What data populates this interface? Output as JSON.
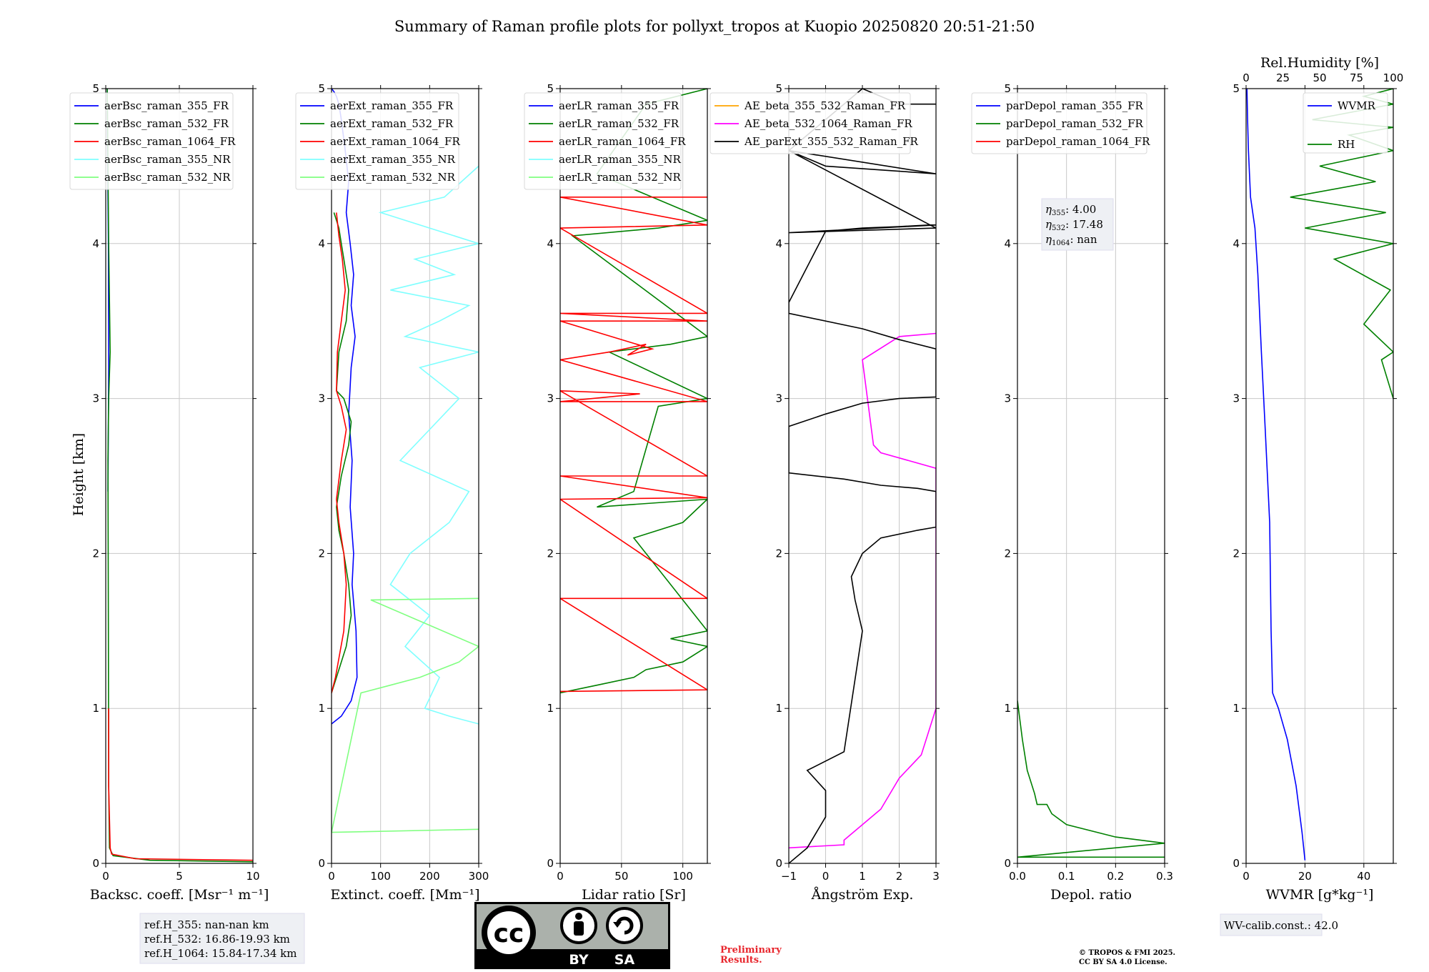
{
  "title": "Summary of Raman profile plots for pollyxt_tropos at Kuopio 20250820 20:51-21:50",
  "ylabel": "Height [km]",
  "ref_heights": [
    "ref.H_355: nan-nan km",
    "ref.H_532: 16.86-19.93 km",
    "ref.H_1064: 15.84-17.34 km"
  ],
  "eta_box": [
    {
      "sym": "η",
      "sub": "355",
      "val": ": 4.00"
    },
    {
      "sym": "η",
      "sub": "532",
      "val": ": 17.48"
    },
    {
      "sym": "η",
      "sub": "1064",
      "val": ": nan"
    }
  ],
  "wv_calib": "WV-calib.const.: 42.0",
  "license_badge": {
    "cc": "cc",
    "by": "BY",
    "sa": "SA"
  },
  "preliminary": [
    "Preliminary",
    "Results."
  ],
  "copyright": [
    "© TROPOS & FMI 2025.",
    "CC BY SA 4.0 License."
  ],
  "colors": {
    "blue": "#0000ff",
    "green": "#008000",
    "red": "#ff0000",
    "cyan": "#7fffff",
    "lightgreen": "#80ff80",
    "orange": "#ffa500",
    "magenta": "#ff00ff",
    "black": "#000000"
  },
  "chart_data": [
    {
      "type": "line",
      "xlabel": "Backsc. coeff. [Msr⁻¹ m⁻¹]",
      "xlim": [
        0,
        10
      ],
      "ylim": [
        0,
        5
      ],
      "xticks": [
        0,
        5,
        10
      ],
      "yticks": [
        0,
        1,
        2,
        3,
        4,
        5
      ],
      "grid": true,
      "legend": "top-right",
      "series": [
        {
          "name": "aerBsc_raman_355_FR",
          "color": "#0000ff",
          "x": [
            0.15,
            0.2,
            0.18,
            0.12,
            0.1
          ],
          "y": [
            2.4,
            3.2,
            4.0,
            4.6,
            5.0
          ]
        },
        {
          "name": "aerBsc_raman_532_FR",
          "color": "#008000",
          "x": [
            10,
            3.0,
            0.5,
            0.25,
            0.2,
            0.18,
            0.15,
            0.2,
            0.3,
            0.2,
            0.1
          ],
          "y": [
            0.01,
            0.02,
            0.05,
            0.1,
            0.5,
            1.5,
            2.6,
            3.0,
            3.3,
            4.0,
            5.0
          ]
        },
        {
          "name": "aerBsc_raman_1064_FR",
          "color": "#ff0000",
          "x": [
            10,
            2.0,
            0.4,
            0.3,
            0.2,
            0.2
          ],
          "y": [
            0.02,
            0.03,
            0.06,
            0.1,
            0.5,
            1.0
          ]
        },
        {
          "name": "aerBsc_raman_355_NR",
          "color": "#7fffff",
          "x": [],
          "y": []
        },
        {
          "name": "aerBsc_raman_532_NR",
          "color": "#80ff80",
          "x": [],
          "y": []
        }
      ]
    },
    {
      "type": "line",
      "xlabel": "Extinct. coeff. [Mm⁻¹]",
      "xlim": [
        0,
        300
      ],
      "ylim": [
        0,
        5
      ],
      "xticks": [
        0,
        100,
        200,
        300
      ],
      "yticks": [
        0,
        1,
        2,
        3,
        4,
        5
      ],
      "grid": true,
      "legend": "top-right",
      "series": [
        {
          "name": "aerExt_raman_355_FR",
          "color": "#0000ff",
          "x": [
            0,
            20,
            40,
            52,
            50,
            42,
            45,
            38,
            42,
            35,
            40,
            48,
            40,
            45,
            38,
            30,
            35,
            28,
            20,
            15,
            10,
            5,
            0
          ],
          "y": [
            0.9,
            0.95,
            1.05,
            1.2,
            1.5,
            1.8,
            2.0,
            2.3,
            2.6,
            2.9,
            3.2,
            3.4,
            3.6,
            3.8,
            4.0,
            4.2,
            4.4,
            4.6,
            4.8,
            4.9,
            4.95,
            4.98,
            5.0
          ]
        },
        {
          "name": "aerExt_raman_532_FR",
          "color": "#008000",
          "x": [
            0,
            10,
            30,
            40,
            35,
            25,
            15,
            10,
            20,
            35,
            40,
            25,
            10,
            15,
            30,
            35,
            25,
            20,
            15,
            10,
            5
          ],
          "y": [
            1.1,
            1.2,
            1.4,
            1.6,
            1.8,
            2.0,
            2.15,
            2.3,
            2.5,
            2.7,
            2.85,
            3.0,
            3.05,
            3.3,
            3.5,
            3.7,
            3.9,
            4.0,
            4.1,
            4.15,
            4.2
          ]
        },
        {
          "name": "aerExt_raman_1064_FR",
          "color": "#ff0000",
          "x": [
            0,
            8,
            25,
            30,
            25,
            15,
            10,
            20,
            30,
            20,
            10,
            12,
            20,
            28,
            22,
            15,
            10
          ],
          "y": [
            1.1,
            1.2,
            1.5,
            1.8,
            2.0,
            2.2,
            2.35,
            2.6,
            2.8,
            2.95,
            3.05,
            3.3,
            3.5,
            3.7,
            3.9,
            4.05,
            4.2
          ]
        },
        {
          "name": "aerExt_raman_355_NR",
          "color": "#7fffff",
          "x": [
            300,
            240,
            190,
            220,
            150,
            200,
            120,
            160,
            240,
            280,
            140,
            200,
            260,
            180,
            300,
            150,
            220,
            280,
            120,
            250,
            170,
            300,
            200,
            100,
            230,
            300
          ],
          "y": [
            0.9,
            0.95,
            1.0,
            1.2,
            1.4,
            1.6,
            1.8,
            2.0,
            2.2,
            2.4,
            2.6,
            2.8,
            3.0,
            3.2,
            3.3,
            3.4,
            3.5,
            3.6,
            3.7,
            3.8,
            3.9,
            4.0,
            4.1,
            4.2,
            4.3,
            4.5
          ]
        },
        {
          "name": "aerExt_raman_532_NR",
          "color": "#80ff80",
          "x": [
            300,
            0,
            60,
            120,
            180,
            260,
            300,
            80,
            300
          ],
          "y": [
            0.22,
            0.2,
            1.1,
            1.15,
            1.2,
            1.3,
            1.4,
            1.7,
            1.71
          ]
        }
      ]
    },
    {
      "type": "line",
      "xlabel": "Lidar ratio [Sr]",
      "xlim": [
        0,
        120
      ],
      "ylim": [
        0,
        5
      ],
      "xticks": [
        0,
        50,
        100
      ],
      "yticks": [
        0,
        1,
        2,
        3,
        4,
        5
      ],
      "grid": true,
      "legend": "top-right",
      "series": [
        {
          "name": "aerLR_raman_355_FR",
          "color": "#0000ff",
          "x": [],
          "y": []
        },
        {
          "name": "aerLR_raman_532_FR",
          "color": "#008000",
          "x": [
            0,
            30,
            60,
            70,
            100,
            120,
            90,
            120,
            60,
            100,
            120,
            30,
            60,
            80,
            120,
            40,
            90,
            120,
            10,
            80,
            120,
            30,
            70,
            120
          ],
          "y": [
            1.1,
            1.15,
            1.2,
            1.25,
            1.3,
            1.4,
            1.45,
            1.5,
            2.1,
            2.2,
            2.35,
            2.3,
            2.4,
            2.95,
            3.0,
            3.3,
            3.35,
            3.4,
            4.05,
            4.1,
            4.15,
            4.45,
            4.9,
            5.0
          ]
        },
        {
          "name": "aerLR_raman_1064_FR",
          "color": "#ff0000",
          "x": [
            0,
            120,
            0,
            120,
            0,
            120,
            0,
            120,
            0,
            65,
            0,
            120,
            0,
            40,
            70,
            55,
            75,
            0,
            120,
            0,
            120,
            0,
            120,
            0,
            120
          ],
          "y": [
            1.11,
            1.12,
            1.71,
            1.71,
            2.35,
            2.36,
            2.5,
            2.5,
            3.05,
            3.03,
            2.98,
            2.98,
            3.25,
            3.3,
            3.35,
            3.28,
            3.32,
            3.5,
            3.5,
            3.55,
            3.55,
            4.1,
            4.12,
            4.3,
            4.3
          ]
        },
        {
          "name": "aerLR_raman_355_NR",
          "color": "#7fffff",
          "x": [],
          "y": []
        },
        {
          "name": "aerLR_raman_532_NR",
          "color": "#80ff80",
          "x": [],
          "y": []
        }
      ]
    },
    {
      "type": "line",
      "xlabel": "Ångström Exp.",
      "xlim": [
        -1,
        3
      ],
      "ylim": [
        0,
        5
      ],
      "xticks": [
        -1,
        0,
        1,
        2,
        3
      ],
      "yticks": [
        0,
        1,
        2,
        3,
        4,
        5
      ],
      "grid": true,
      "legend": "top-right",
      "series": [
        {
          "name": "AE_beta_355_532_Raman_FR",
          "color": "#ffa500",
          "x": [],
          "y": []
        },
        {
          "name": "AE_beta_532_1064_Raman_FR",
          "color": "#ff00ff",
          "x": [
            -1,
            0.5,
            0.5,
            1.5,
            2.0,
            2.6,
            3.0,
            3.0,
            1.5,
            1.3,
            1.0,
            2.0,
            3.0
          ],
          "y": [
            0.1,
            0.12,
            0.15,
            0.35,
            0.55,
            0.7,
            1.0,
            2.55,
            2.65,
            2.7,
            3.25,
            3.4,
            3.42
          ]
        },
        {
          "name": "AE_parExt_355_532_Raman_FR",
          "color": "#000000",
          "x": [
            -1,
            -0.5,
            0,
            0,
            -0.5,
            0.5,
            1.0,
            0.8,
            0.7,
            1.0,
            1.5,
            2.5,
            3.0,
            3.0,
            2.5,
            1.5,
            0.5,
            -1,
            -1,
            0,
            1,
            2,
            3,
            3,
            2,
            1,
            -1,
            -1,
            0,
            1,
            2,
            2.8,
            3.0,
            -1,
            3.0,
            -1,
            0,
            3.0,
            -1,
            1,
            2,
            3
          ],
          "y": [
            0.0,
            0.1,
            0.3,
            0.47,
            0.6,
            0.72,
            1.5,
            1.7,
            1.85,
            2.0,
            2.1,
            2.15,
            2.17,
            2.4,
            2.42,
            2.44,
            2.48,
            2.52,
            2.82,
            2.9,
            2.97,
            3.0,
            3.01,
            3.32,
            3.38,
            3.45,
            3.55,
            3.62,
            4.08,
            4.1,
            4.11,
            4.12,
            4.12,
            4.07,
            4.1,
            4.6,
            4.5,
            4.45,
            4.6,
            5.0,
            4.9,
            4.9
          ]
        }
      ]
    },
    {
      "type": "line",
      "xlabel": "Depol. ratio",
      "xlim": [
        0,
        0.3
      ],
      "ylim": [
        0,
        5
      ],
      "xticks": [
        0.0,
        0.1,
        0.2,
        0.3
      ],
      "xticklabels": [
        "0.0",
        "0.1",
        "0.2",
        "0.3"
      ],
      "yticks": [
        0,
        1,
        2,
        3,
        4,
        5
      ],
      "grid": true,
      "legend": "top-right",
      "series": [
        {
          "name": "parDepol_raman_355_FR",
          "color": "#0000ff",
          "x": [],
          "y": []
        },
        {
          "name": "parDepol_raman_532_FR",
          "color": "#008000",
          "x": [
            0.3,
            0.0,
            0.3,
            0.2,
            0.1,
            0.07,
            0.06,
            0.04,
            0.035,
            0.02,
            0.01,
            0.0
          ],
          "y": [
            0.04,
            0.04,
            0.13,
            0.17,
            0.25,
            0.32,
            0.38,
            0.38,
            0.45,
            0.6,
            0.8,
            1.05
          ]
        },
        {
          "name": "parDepol_raman_1064_FR",
          "color": "#ff0000",
          "x": [],
          "y": []
        }
      ]
    },
    {
      "type": "line",
      "xlabel": "WVMR [g*kg⁻¹]",
      "x2label": "Rel.Humidity [%]",
      "xlim": [
        0,
        50
      ],
      "x2lim": [
        0,
        100
      ],
      "ylim": [
        0,
        5
      ],
      "xticks": [
        0,
        20,
        40
      ],
      "x2ticks": [
        0,
        25,
        50,
        75,
        100
      ],
      "yticks": [
        0,
        1,
        2,
        3,
        4,
        5
      ],
      "grid": true,
      "legend": "top-right",
      "series": [
        {
          "name": "WVMR",
          "color": "#0000ff",
          "axis": "x",
          "x": [
            20,
            19,
            17,
            14,
            11,
            9,
            8.5,
            8.0,
            6.5,
            5.2,
            4.0,
            3.0,
            1.5,
            0.8,
            0.5,
            0.3
          ],
          "y": [
            0.02,
            0.2,
            0.5,
            0.8,
            1.0,
            1.1,
            1.5,
            2.2,
            2.8,
            3.3,
            3.8,
            4.1,
            4.3,
            4.6,
            4.8,
            5.0
          ]
        },
        {
          "name": "RH",
          "color": "#008000",
          "axis": "x2",
          "x": [
            100,
            92,
            100,
            80,
            98,
            60,
            100,
            40,
            95,
            30,
            88,
            50,
            100,
            70,
            100,
            45,
            100,
            80,
            100
          ],
          "y": [
            3.0,
            3.25,
            3.3,
            3.48,
            3.7,
            3.9,
            4.0,
            4.1,
            4.2,
            4.3,
            4.4,
            4.5,
            4.6,
            4.7,
            4.75,
            4.8,
            4.9,
            4.95,
            5.0
          ]
        }
      ]
    }
  ]
}
